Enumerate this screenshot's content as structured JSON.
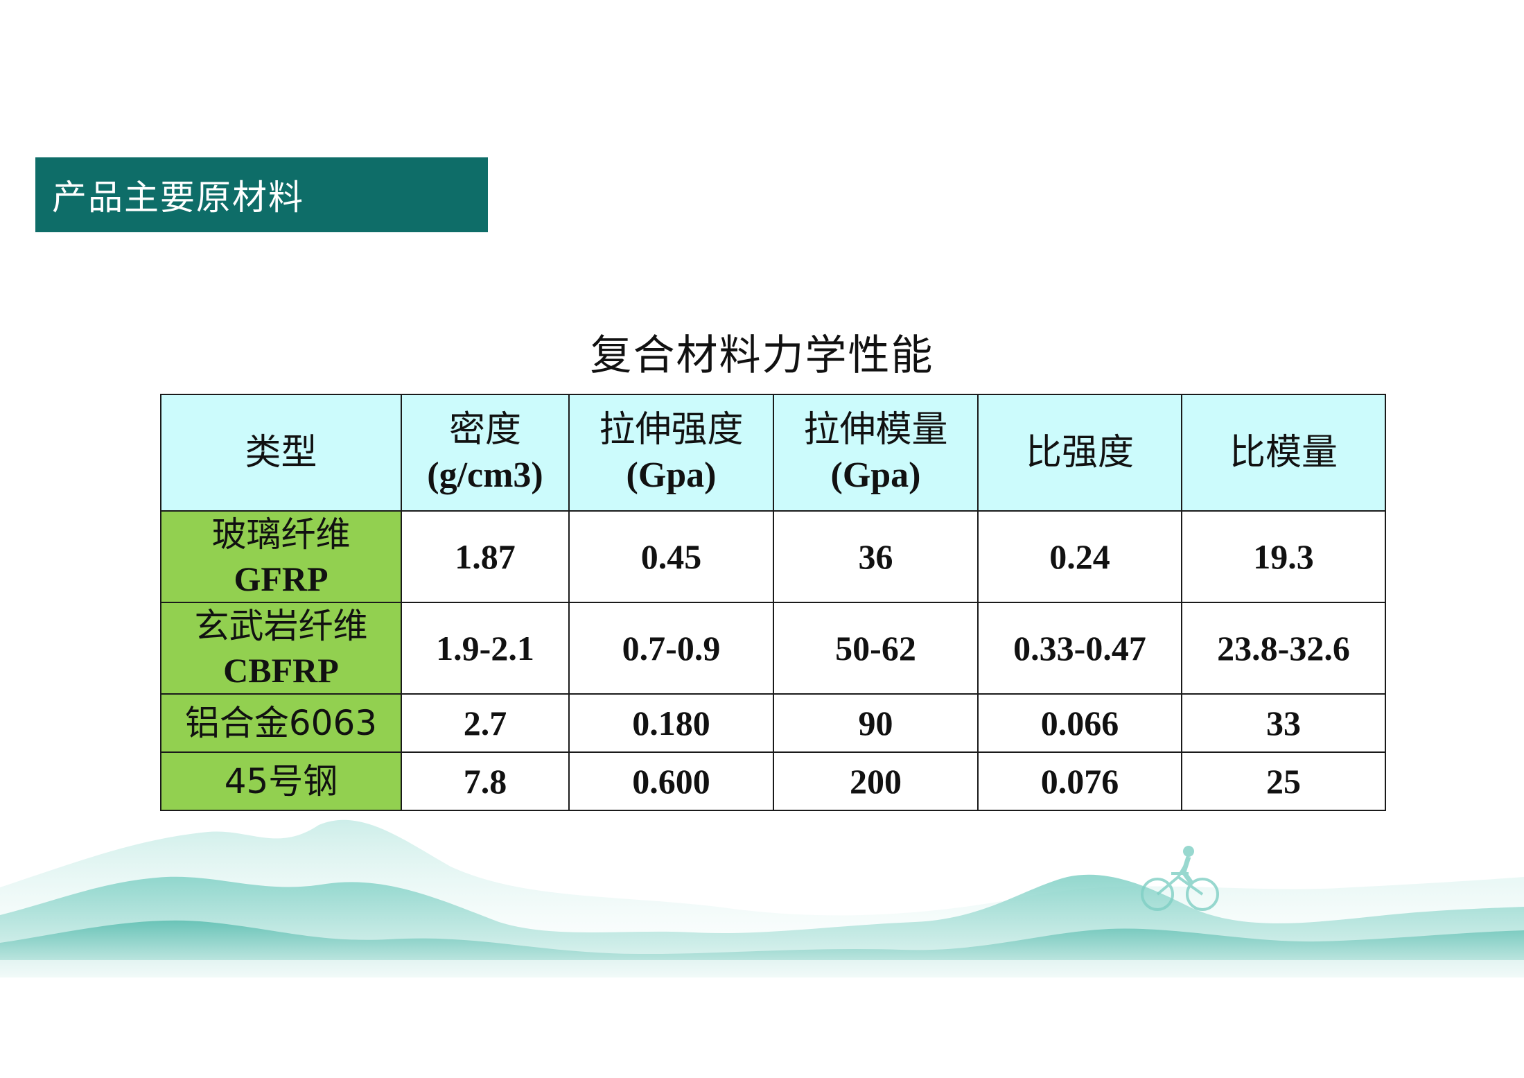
{
  "section": {
    "title": "产品主要原材料"
  },
  "table": {
    "title": "复合材料力学性能",
    "headers": [
      {
        "cn": "类型",
        "unit": ""
      },
      {
        "cn": "密度",
        "unit": "(g/cm3)"
      },
      {
        "cn": "拉伸强度",
        "unit": "(Gpa)"
      },
      {
        "cn": "拉伸模量",
        "unit": "(Gpa)"
      },
      {
        "cn": "比强度",
        "unit": ""
      },
      {
        "cn": "比模量",
        "unit": ""
      }
    ],
    "rows": [
      {
        "type_cn": "玻璃纤维",
        "type_en": "GFRP",
        "density": "1.87",
        "tensile_strength": "0.45",
        "tensile_modulus": "36",
        "specific_strength": "0.24",
        "specific_modulus": "19.3"
      },
      {
        "type_cn": "玄武岩纤维",
        "type_en": "CBFRP",
        "density": "1.9-2.1",
        "tensile_strength": "0.7-0.9",
        "tensile_modulus": "50-62",
        "specific_strength": "0.33-0.47",
        "specific_modulus": "23.8-32.6"
      },
      {
        "type_cn": "铝合金6063",
        "type_en": "",
        "density": "2.7",
        "tensile_strength": "0.180",
        "tensile_modulus": "90",
        "specific_strength": "0.066",
        "specific_modulus": "33"
      },
      {
        "type_cn": "45号钢",
        "type_en": "",
        "density": "7.8",
        "tensile_strength": "0.600",
        "tensile_modulus": "200",
        "specific_strength": "0.076",
        "specific_modulus": "25"
      }
    ]
  },
  "colors": {
    "banner": "#0e6d68",
    "header_bg": "#ccfbfc",
    "type_bg": "#92d050",
    "mountain_light": "#bfe6e1",
    "mountain_dark": "#5fc0b4"
  },
  "icons": {
    "scenery": "mountain-landscape-illustration",
    "cyclist": "cyclist-silhouette-icon"
  }
}
